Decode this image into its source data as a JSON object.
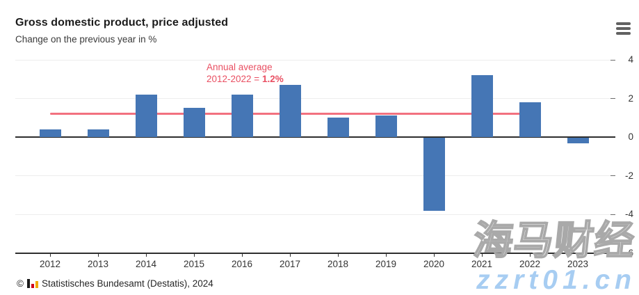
{
  "header": {
    "title": "Gross domestic product, price adjusted",
    "subtitle": "Change on the previous year in %",
    "menu_icon": "hamburger-icon"
  },
  "chart_data": {
    "type": "bar",
    "title": "Gross domestic product, price adjusted",
    "subtitle": "Change on the previous year in %",
    "categories": [
      "2012",
      "2013",
      "2014",
      "2015",
      "2016",
      "2017",
      "2018",
      "2019",
      "2020",
      "2021",
      "2022",
      "2023"
    ],
    "values": [
      0.4,
      0.4,
      2.2,
      1.5,
      2.2,
      2.7,
      1.0,
      1.1,
      -3.8,
      3.2,
      1.8,
      -0.3
    ],
    "ylabel": "Change on the previous year in %",
    "xlabel": "",
    "ylim": [
      -6,
      4
    ],
    "yticks": [
      4,
      2,
      0,
      -2,
      -4,
      -6
    ],
    "grid": true,
    "legend": "none",
    "yaxis_side": "right",
    "bar_color": "#4576b5",
    "average_line": {
      "value": 1.2,
      "label_line1": "Annual average",
      "label_line2_prefix": "2012-2022 = ",
      "label_value": "1.2%",
      "line_color": "#f2717f",
      "text_color": "#e94f62",
      "span_categories": [
        "2012",
        "2022"
      ]
    }
  },
  "footer": {
    "copyright": "©",
    "logo_icon": "destatis-bar-chart-logo",
    "logo_colors": [
      "#1a1a1a",
      "#d0021b",
      "#f2a800"
    ],
    "source_text": "Statistisches Bundesamt (Destatis), 2024"
  },
  "watermark": {
    "cjk_text": "海马财经",
    "url_text": "zzrt01.cn",
    "url_color": "#a7cdf2"
  }
}
